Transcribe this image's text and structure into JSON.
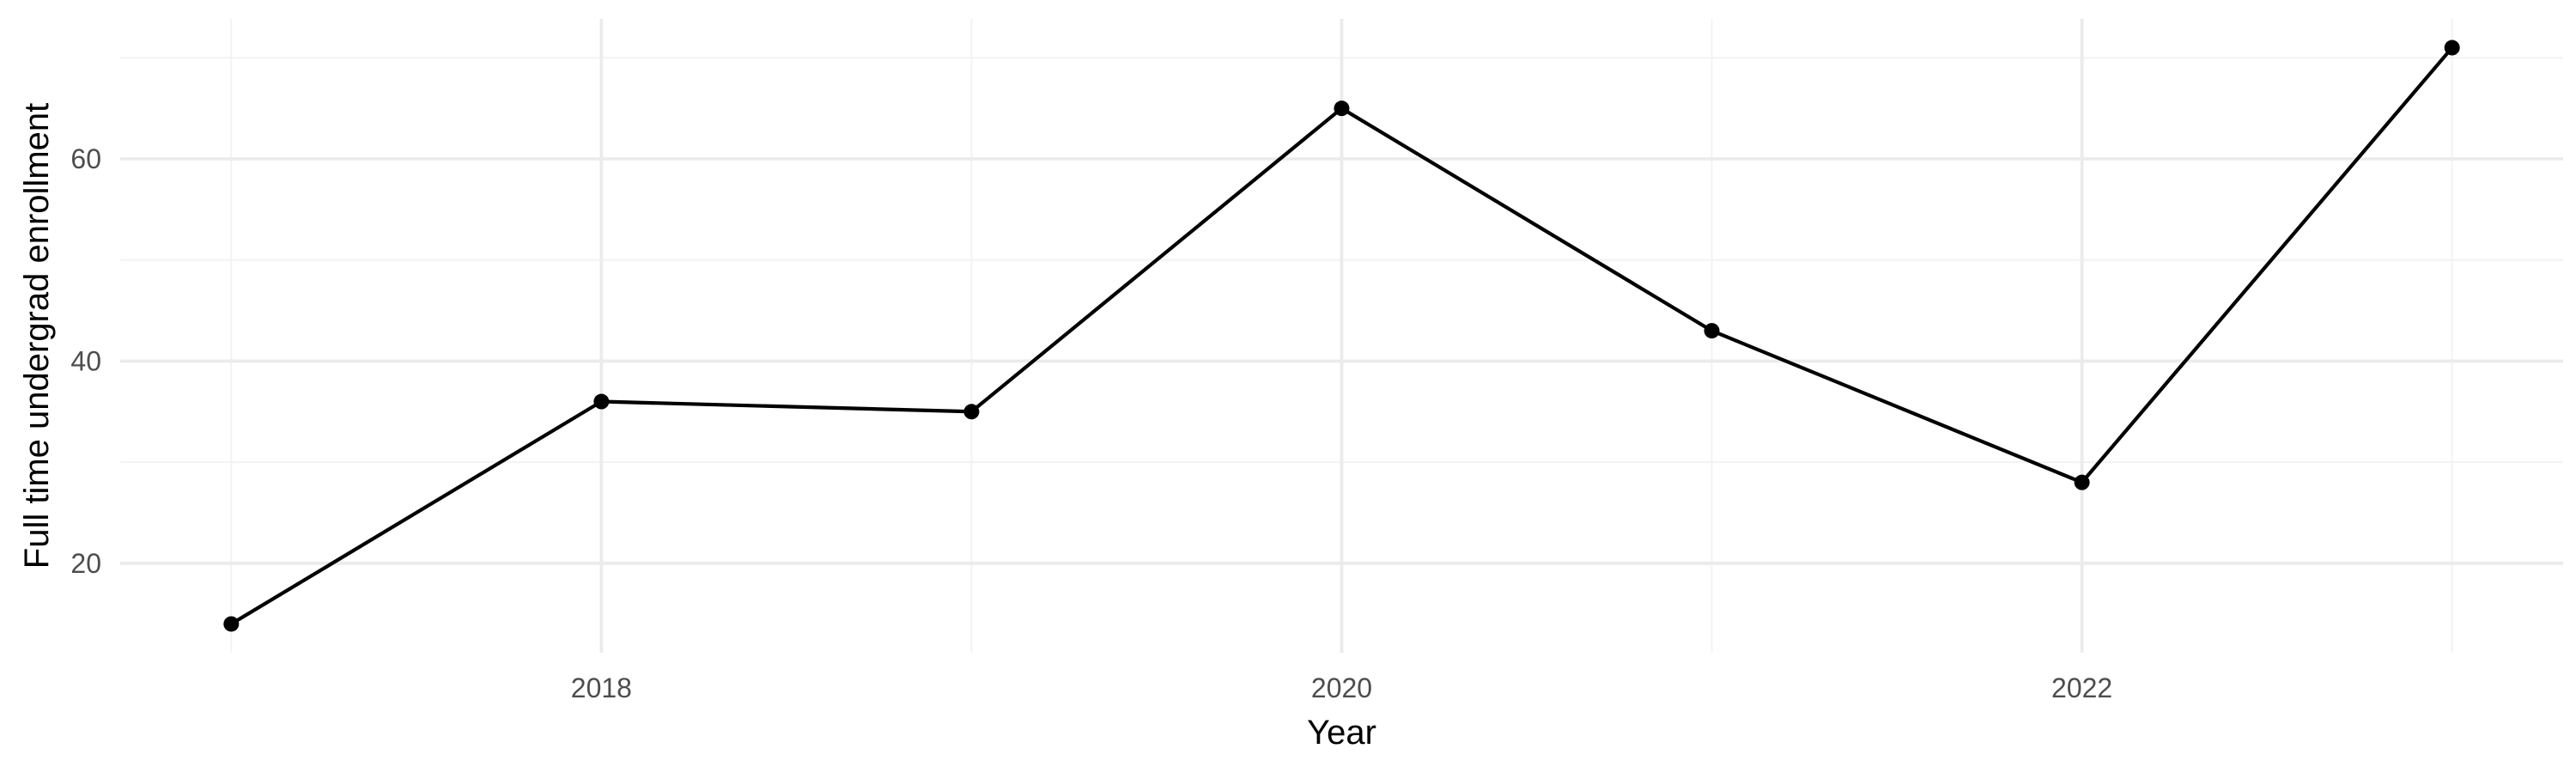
{
  "chart_data": {
    "type": "line",
    "title": "",
    "xlabel": "Year",
    "ylabel": "Full time undergrad enrollment",
    "x": [
      2017,
      2018,
      2019,
      2020,
      2021,
      2022,
      2023
    ],
    "series": [
      {
        "values": [
          14,
          36,
          35,
          65,
          43,
          28,
          71
        ]
      }
    ],
    "x_ticks": [
      2018,
      2020,
      2022
    ],
    "x_tick_labels": [
      "2018",
      "2020",
      "2022"
    ],
    "y_ticks": [
      20,
      40,
      60
    ],
    "y_tick_labels": [
      "20",
      "40",
      "60"
    ],
    "xlim": [
      2016.7,
      2023.3
    ],
    "ylim": [
      11.15,
      73.85
    ],
    "grid": true,
    "legend": "none",
    "colors": {
      "line": "#000000",
      "point": "#000000",
      "grid_major": "#ebebeb",
      "grid_minor": "#f2f2f2",
      "tick_text": "#4d4d4d"
    }
  }
}
